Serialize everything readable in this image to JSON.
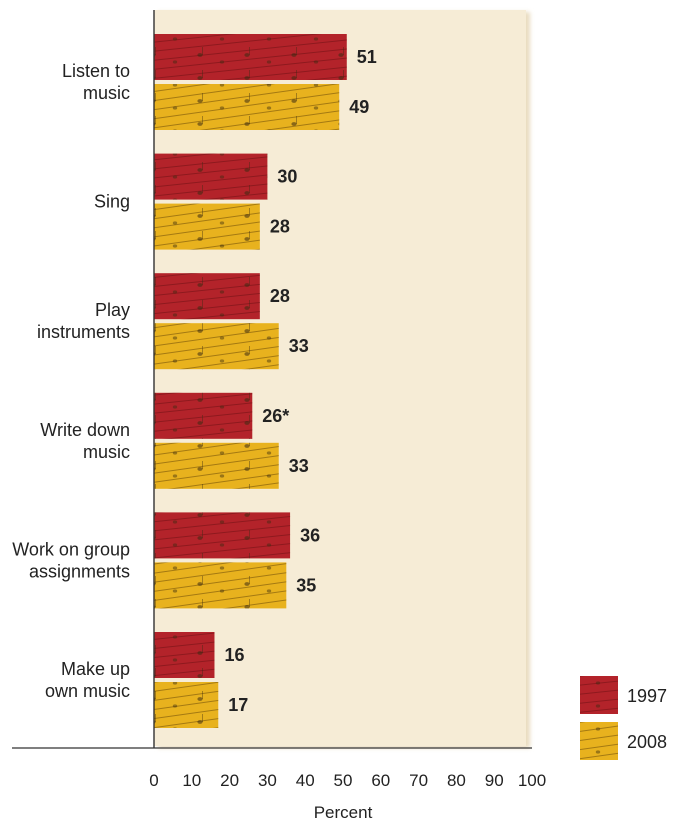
{
  "chart_data": {
    "type": "bar",
    "orientation": "horizontal",
    "categories": [
      [
        "Listen to",
        "music"
      ],
      [
        "Sing"
      ],
      [
        "Play",
        "instruments"
      ],
      [
        "Write down",
        "music"
      ],
      [
        "Work on group",
        "assignments"
      ],
      [
        "Make up",
        "own music"
      ]
    ],
    "series": [
      {
        "name": "1997",
        "values": [
          51,
          30,
          28,
          26,
          36,
          16
        ],
        "labels": [
          "51",
          "30",
          "28",
          "26*",
          "36",
          "16"
        ],
        "color": "#b3232a"
      },
      {
        "name": "2008",
        "values": [
          49,
          28,
          33,
          33,
          35,
          17
        ],
        "labels": [
          "49",
          "28",
          "33",
          "33",
          "35",
          "17"
        ],
        "color": "#e8b21e"
      }
    ],
    "xlabel": "Percent",
    "xlim": [
      0,
      100
    ],
    "xticks": [
      0,
      10,
      20,
      30,
      40,
      50,
      60,
      70,
      80,
      90,
      100
    ],
    "legend": "bottom-right",
    "grid": false,
    "background": "#f6ecd6"
  }
}
